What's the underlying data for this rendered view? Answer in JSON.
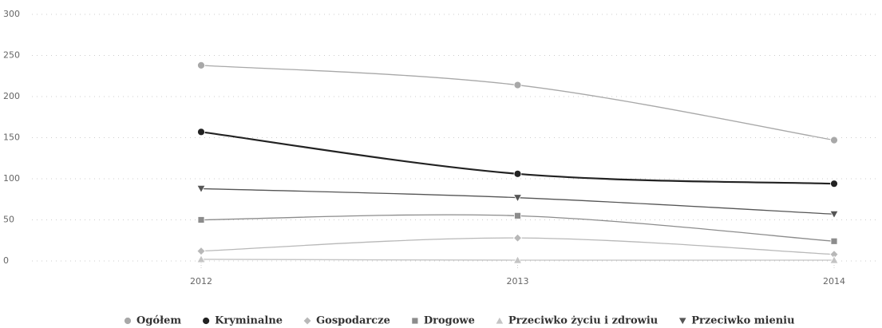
{
  "chart_data": {
    "type": "line",
    "categories": [
      "2012",
      "2013",
      "2014"
    ],
    "series": [
      {
        "name": "Ogółem",
        "color": "#a8a8a8",
        "marker": "circle",
        "values": [
          238,
          214,
          147
        ]
      },
      {
        "name": "Kryminalne",
        "color": "#222222",
        "marker": "circle",
        "values": [
          157,
          106,
          94
        ]
      },
      {
        "name": "Gospodarcze",
        "color": "#b8b8b8",
        "marker": "diamond",
        "values": [
          12,
          28,
          8
        ]
      },
      {
        "name": "Drogowe",
        "color": "#8c8c8c",
        "marker": "square",
        "values": [
          50,
          55,
          24
        ]
      },
      {
        "name": "Przeciwko życiu i zdrowiu",
        "color": "#c4c4c4",
        "marker": "triangle",
        "values": [
          2,
          1,
          1
        ]
      },
      {
        "name": "Przeciwko mieniu",
        "color": "#555555",
        "marker": "triangle-down",
        "values": [
          88,
          77,
          57
        ]
      }
    ],
    "ylim": [
      0,
      300
    ],
    "yticks": [
      0,
      50,
      100,
      150,
      200,
      250,
      300
    ],
    "grid": true,
    "legend": "bottom"
  }
}
